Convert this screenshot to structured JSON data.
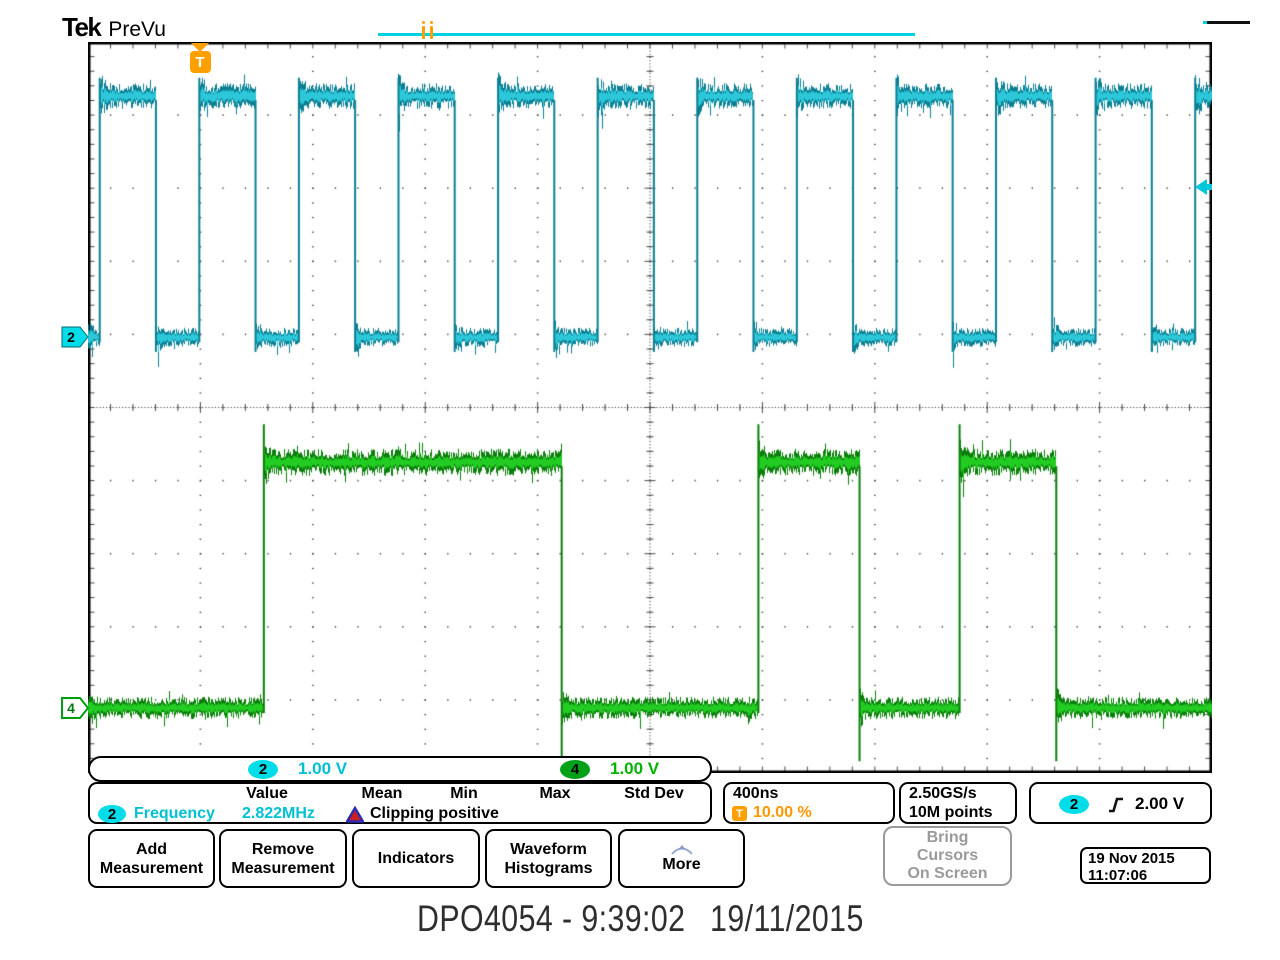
{
  "window": {
    "logo": "Tek",
    "mode": "PreVu"
  },
  "icons": {
    "more_button": "curve-more-icon",
    "trigger_slope": "rising-edge-icon",
    "measurement_warning": "warning-triangle-icon",
    "trigger_position_flag": "trigger-t-flag-icon",
    "trigger_level_marker": "trigger-level-arrow-icon"
  },
  "chart_data": {
    "type": "line",
    "title": "Oscilloscope PreVu display",
    "time_per_div": "400ns",
    "horizontal_divisions": 10,
    "vertical_divisions": 10,
    "trigger": {
      "source": "2",
      "level_v": 2.0,
      "position_pct": 10.0
    },
    "channels": [
      {
        "id": "2",
        "scale_label": "1.00 V",
        "volts_per_div": 1.0,
        "zero_div_above_center": 0.96,
        "low_v": 0.0,
        "high_v": 3.3,
        "clock": {
          "first_rise_div": 0.1,
          "period_div": 0.886,
          "high_div": 0.5
        },
        "noise_high_div": 0.16,
        "noise_low_div": 0.12,
        "overshoot_div": 0.25,
        "undershoot_div": 0.2,
        "color_dark": "#0b7f92",
        "color_bright": "#2cc8da",
        "measured": {
          "name": "Frequency",
          "value": "2.822MHz",
          "flag": "Clipping positive"
        }
      },
      {
        "id": "4",
        "scale_label": "1.00 V",
        "volts_per_div": 1.0,
        "zero_div_above_center": -4.11,
        "low_v": 0.0,
        "high_v": 3.36,
        "pulses_div": [
          [
            1.56,
            4.21
          ],
          [
            5.96,
            6.86
          ],
          [
            7.75,
            8.61
          ]
        ],
        "noise_high_div": 0.17,
        "noise_low_div": 0.14,
        "overshoot_div": 0.52,
        "undershoot_div": 0.73,
        "color_dark": "#0a7e0a",
        "color_bright": "#22cc22"
      }
    ]
  },
  "channel_markers": {
    "ch2": "2",
    "ch4": "4",
    "trigger_flag": "T"
  },
  "scale_bar": {
    "ch2_label": "2",
    "ch2_scale": "1.00 V",
    "ch4_label": "4",
    "ch4_scale": "1.00 V"
  },
  "measurements": {
    "headers": [
      "Value",
      "Mean",
      "Min",
      "Max",
      "Std Dev"
    ],
    "rows": [
      {
        "channel": "2",
        "name": "Frequency",
        "value": "2.822MHz",
        "warning": "Clipping positive"
      }
    ]
  },
  "horizontal": {
    "scale": "400ns",
    "trigger_icon": "T",
    "trigger_position": "10.00 %"
  },
  "acquisition": {
    "sample_rate": "2.50GS/s",
    "record_length": "10M points"
  },
  "trigger_readout": {
    "source": "2",
    "level": "2.00 V"
  },
  "menu": {
    "buttons": [
      {
        "line1": "Add",
        "line2": "Measurement"
      },
      {
        "line1": "Remove",
        "line2": "Measurement"
      },
      {
        "line1": "Indicators",
        "line2": ""
      },
      {
        "line1": "Waveform",
        "line2": "Histograms"
      },
      {
        "line1": "More",
        "line2": ""
      }
    ]
  },
  "side_panel": {
    "bring_cursors": {
      "line1": "Bring",
      "line2": "Cursors",
      "line3": "On Screen",
      "enabled": false
    },
    "datetime": {
      "date": "19 Nov 2015",
      "time": "11:07:06"
    }
  },
  "caption": {
    "left": "DPO4054 - 9:39:02",
    "right": "19/11/2015"
  }
}
